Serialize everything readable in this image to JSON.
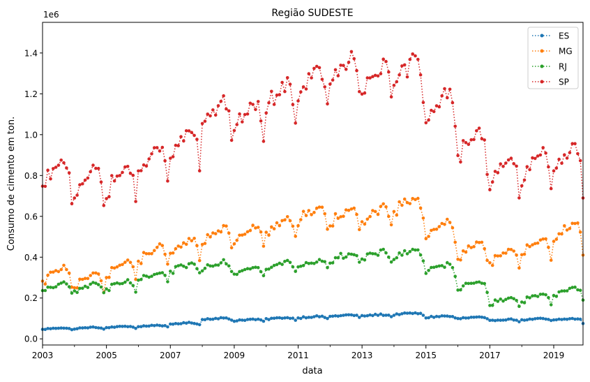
{
  "chart_data": {
    "type": "line",
    "title": "Região SUDESTE",
    "xlabel": "data",
    "ylabel": "Consumo de cimento em ton.",
    "y_offset_label": "1e6",
    "xlim": [
      "2003-01",
      "2019-12"
    ],
    "ylim": [
      -0.03,
      1.55
    ],
    "x_ticks": [
      {
        "value": 2003,
        "label": "2003"
      },
      {
        "value": 2005,
        "label": "2005"
      },
      {
        "value": 2007,
        "label": "2007"
      },
      {
        "value": 2009,
        "label": "2009"
      },
      {
        "value": 2011,
        "label": "2011"
      },
      {
        "value": 2013,
        "label": "2013"
      },
      {
        "value": 2015,
        "label": "2015"
      },
      {
        "value": 2017,
        "label": "2017"
      },
      {
        "value": 2019,
        "label": "2019"
      }
    ],
    "x_minor_ticks": [
      2004,
      2006,
      2008,
      2010,
      2012,
      2014,
      2016,
      2018
    ],
    "y_ticks": [
      {
        "value": 0.0,
        "label": "0.0"
      },
      {
        "value": 0.2,
        "label": "0.2"
      },
      {
        "value": 0.4,
        "label": "0.4"
      },
      {
        "value": 0.6,
        "label": "0.6"
      },
      {
        "value": 0.8,
        "label": "0.8"
      },
      {
        "value": 1.0,
        "label": "1.0"
      },
      {
        "value": 1.2,
        "label": "1.2"
      },
      {
        "value": 1.4,
        "label": "1.4"
      }
    ],
    "grid": false,
    "legend_position": "top-right",
    "series_frequency": "monthly, Jan 2003 to Dec 2019, values in millions of tons (1e6)",
    "series": [
      {
        "name": "ES",
        "color": "#1f77b4",
        "annual_values": [
          0.05,
          0.053,
          0.058,
          0.063,
          0.075,
          0.098,
          0.092,
          0.1,
          0.106,
          0.113,
          0.115,
          0.122,
          0.108,
          0.102,
          0.092,
          0.095,
          0.095
        ],
        "seasonal": [
          -0.004,
          -0.003,
          0.0,
          0.0,
          0.001,
          0.002,
          0.003,
          0.004,
          0.003,
          0.002,
          0.0,
          -0.006
        ],
        "last_value": 0.075
      },
      {
        "name": "MG",
        "color": "#ff7f0e",
        "annual_values": [
          0.318,
          0.285,
          0.345,
          0.415,
          0.452,
          0.508,
          0.512,
          0.552,
          0.608,
          0.598,
          0.603,
          0.658,
          0.538,
          0.432,
          0.408,
          0.448,
          0.528
        ],
        "seasonal": [
          -0.04,
          -0.04,
          0.0,
          0.0,
          0.01,
          0.01,
          0.02,
          0.03,
          0.04,
          0.03,
          0.0,
          -0.06
        ],
        "last_value": 0.41
      },
      {
        "name": "RJ",
        "color": "#2ca02c",
        "annual_values": [
          0.252,
          0.254,
          0.262,
          0.302,
          0.348,
          0.362,
          0.338,
          0.358,
          0.368,
          0.402,
          0.408,
          0.418,
          0.345,
          0.265,
          0.185,
          0.202,
          0.232
        ],
        "seasonal": [
          -0.02,
          -0.02,
          0.0,
          0.0,
          0.005,
          0.005,
          0.01,
          0.015,
          0.02,
          0.015,
          0.0,
          -0.03
        ],
        "last_value": 0.19
      },
      {
        "name": "SP",
        "color": "#d62728",
        "annual_values": [
          0.802,
          0.768,
          0.778,
          0.872,
          0.952,
          1.102,
          1.082,
          1.182,
          1.252,
          1.302,
          1.272,
          1.302,
          1.142,
          0.952,
          0.822,
          0.842,
          0.872
        ],
        "seasonal": [
          -0.07,
          -0.06,
          0.0,
          0.0,
          0.02,
          0.02,
          0.04,
          0.06,
          0.07,
          0.05,
          0.0,
          -0.12
        ],
        "last_value": 0.69
      }
    ]
  }
}
